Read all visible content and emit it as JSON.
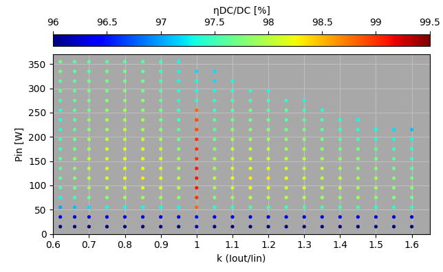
{
  "chart_data": {
    "type": "scatter",
    "xlabel": "k (Iout/Iin)",
    "ylabel": "Pin [W]",
    "colorbar": {
      "label": "ηDC/DC [%]",
      "range": [
        96,
        99.5
      ],
      "ticks": [
        96,
        96.5,
        97,
        97.5,
        98,
        98.5,
        99,
        99.5
      ]
    },
    "xlim": [
      0.6,
      1.65
    ],
    "ylim": [
      0,
      370
    ],
    "xticks": [
      0.6,
      0.7,
      0.8,
      0.9,
      1,
      1.1,
      1.2,
      1.3,
      1.4,
      1.5,
      1.6
    ],
    "yticks": [
      0,
      50,
      100,
      150,
      200,
      250,
      300,
      350
    ],
    "grid": true,
    "marker": "circle",
    "x": [
      0.62,
      0.66,
      0.7,
      0.75,
      0.8,
      0.85,
      0.9,
      0.95,
      1.0,
      1.05,
      1.1,
      1.15,
      1.2,
      1.25,
      1.3,
      1.35,
      1.4,
      1.45,
      1.5,
      1.55,
      1.6
    ],
    "y": [
      15,
      35,
      55,
      75,
      95,
      115,
      135,
      155,
      175,
      195,
      215,
      235,
      255,
      275,
      295,
      315,
      335,
      355
    ],
    "values": [
      [
        96.0,
        96.0,
        96.0,
        96.0,
        96.0,
        96.0,
        96.0,
        96.0,
        96.2,
        96.0,
        96.0,
        96.0,
        96.0,
        96.0,
        96.0,
        96.0,
        96.0,
        96.0,
        96.0,
        96.0,
        96.0
      ],
      [
        96.3,
        96.3,
        96.3,
        96.3,
        96.3,
        96.3,
        96.3,
        96.3,
        96.5,
        96.3,
        96.3,
        96.3,
        96.3,
        96.3,
        96.3,
        96.3,
        96.3,
        96.3,
        96.3,
        96.3,
        96.3
      ],
      [
        97.0,
        97.1,
        97.2,
        97.3,
        97.3,
        97.3,
        97.3,
        97.3,
        98.8,
        97.4,
        97.4,
        97.5,
        97.5,
        97.5,
        97.5,
        97.5,
        97.5,
        97.5,
        97.4,
        97.4,
        97.4
      ],
      [
        97.3,
        97.5,
        97.7,
        97.8,
        97.9,
        97.9,
        97.9,
        97.8,
        99.0,
        97.8,
        97.9,
        98.0,
        98.0,
        98.0,
        98.0,
        97.9,
        97.9,
        97.9,
        97.8,
        97.8,
        97.7
      ],
      [
        97.5,
        97.7,
        97.9,
        98.0,
        98.1,
        98.2,
        98.1,
        98.0,
        99.1,
        97.9,
        98.1,
        98.2,
        98.2,
        98.1,
        98.1,
        98.0,
        98.0,
        97.9,
        97.9,
        97.8,
        97.8
      ],
      [
        97.6,
        97.8,
        98.0,
        98.1,
        98.2,
        98.3,
        98.2,
        98.0,
        99.1,
        98.0,
        98.2,
        98.3,
        98.3,
        98.2,
        98.1,
        98.0,
        98.0,
        97.9,
        97.9,
        97.8,
        97.7
      ],
      [
        97.6,
        97.8,
        98.0,
        98.1,
        98.2,
        98.2,
        98.1,
        97.9,
        99.1,
        97.9,
        98.1,
        98.2,
        98.2,
        98.1,
        98.0,
        98.0,
        97.9,
        97.8,
        97.8,
        97.7,
        97.6
      ],
      [
        97.6,
        97.8,
        98.0,
        98.1,
        98.2,
        98.2,
        98.1,
        97.9,
        99.0,
        97.9,
        98.0,
        98.1,
        98.1,
        98.0,
        98.0,
        97.9,
        97.8,
        97.8,
        97.7,
        97.6,
        97.5
      ],
      [
        97.5,
        97.7,
        97.9,
        98.1,
        98.1,
        98.1,
        98.0,
        97.8,
        99.0,
        97.8,
        98.0,
        98.0,
        98.0,
        97.9,
        97.9,
        97.8,
        97.7,
        97.7,
        97.6,
        97.5,
        97.4
      ],
      [
        97.5,
        97.7,
        97.9,
        98.0,
        98.0,
        98.0,
        97.9,
        97.7,
        99.0,
        97.7,
        97.9,
        97.9,
        97.9,
        97.8,
        97.8,
        97.7,
        97.6,
        97.5,
        97.4,
        97.3,
        97.3
      ],
      [
        97.4,
        97.6,
        97.8,
        97.9,
        98.0,
        97.9,
        97.8,
        97.6,
        98.9,
        97.6,
        97.8,
        97.8,
        97.8,
        97.7,
        97.7,
        97.6,
        97.5,
        97.4,
        97.3,
        97.2,
        97.1
      ],
      [
        97.4,
        97.6,
        97.8,
        97.9,
        97.9,
        97.9,
        97.7,
        97.5,
        98.9,
        97.6,
        97.7,
        97.7,
        97.7,
        97.6,
        97.6,
        97.5,
        97.4,
        97.3,
        null,
        null,
        null
      ],
      [
        97.4,
        97.6,
        97.7,
        97.8,
        97.9,
        97.8,
        97.7,
        97.5,
        98.8,
        97.5,
        97.6,
        97.7,
        97.6,
        97.6,
        97.5,
        97.4,
        null,
        null,
        null,
        null,
        null
      ],
      [
        97.5,
        97.6,
        97.7,
        97.8,
        97.8,
        97.8,
        97.6,
        97.4,
        97.4,
        97.4,
        97.5,
        97.5,
        97.5,
        97.4,
        97.3,
        null,
        null,
        null,
        null,
        null,
        null
      ],
      [
        97.6,
        97.6,
        97.7,
        97.7,
        97.8,
        97.7,
        97.6,
        97.4,
        97.3,
        97.3,
        97.4,
        97.4,
        97.3,
        null,
        null,
        null,
        null,
        null,
        null,
        null,
        null
      ],
      [
        97.6,
        97.6,
        97.7,
        97.7,
        97.7,
        97.7,
        97.5,
        97.3,
        97.3,
        97.2,
        97.3,
        null,
        null,
        null,
        null,
        null,
        null,
        null,
        null,
        null,
        null
      ],
      [
        97.7,
        97.6,
        97.6,
        97.7,
        97.7,
        97.6,
        97.5,
        97.3,
        97.2,
        97.2,
        null,
        null,
        null,
        null,
        null,
        null,
        null,
        null,
        null,
        null,
        null
      ],
      [
        97.7,
        97.6,
        97.6,
        97.6,
        97.6,
        97.6,
        97.5,
        97.3,
        null,
        null,
        null,
        null,
        null,
        null,
        null,
        null,
        null,
        null,
        null,
        null,
        null
      ]
    ]
  }
}
